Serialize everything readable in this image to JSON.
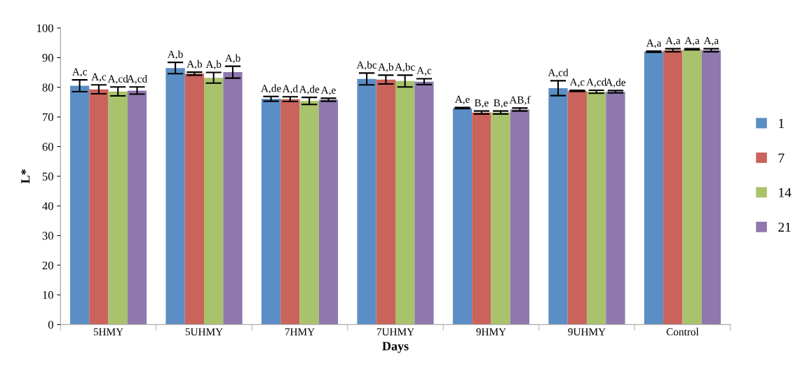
{
  "chart_data": {
    "type": "bar",
    "xlabel": "Days",
    "ylabel": "L*",
    "categories": [
      "5HMY",
      "5UHMY",
      "7HMY",
      "7UHMY",
      "9HMY",
      "9UHMY",
      "Control"
    ],
    "ylim": [
      0,
      100
    ],
    "yticks": [
      0,
      10,
      20,
      30,
      40,
      50,
      60,
      70,
      80,
      90,
      100
    ],
    "grid": false,
    "legend": "right",
    "series": [
      {
        "name": "1",
        "color": "#5b8ec4",
        "values": [
          80.5,
          86.5,
          76.1,
          82.8,
          73.0,
          79.7,
          92.0
        ],
        "errors": [
          2,
          1.9,
          0.8,
          2,
          0.2,
          2.5,
          0.2
        ],
        "value_labels": [
          "A,c",
          "A,b",
          "A,de",
          "A,bc",
          "A,e",
          "A,cd",
          "A,a"
        ]
      },
      {
        "name": "7",
        "color": "#c9635c",
        "values": [
          79.3,
          84.6,
          76.0,
          82.6,
          71.5,
          78.8,
          92.5
        ],
        "errors": [
          1.5,
          0.5,
          0.8,
          1.5,
          0.5,
          0.2,
          0.5
        ],
        "value_labels": [
          "A,c",
          "A,b",
          "A,d",
          "A,b",
          "B,e",
          "A,c",
          "A,a"
        ]
      },
      {
        "name": "14",
        "color": "#a9c26c",
        "values": [
          78.6,
          83.2,
          75.4,
          82.1,
          71.5,
          78.5,
          92.8
        ],
        "errors": [
          1.5,
          1.8,
          1.2,
          2,
          0.5,
          0.5,
          0.2
        ],
        "value_labels": [
          "A,cd",
          "A,b",
          "A,de",
          "A,bc",
          "B,e",
          "A,cd",
          "A,a"
        ]
      },
      {
        "name": "21",
        "color": "#8f78ae",
        "values": [
          78.9,
          85.1,
          75.8,
          81.9,
          72.5,
          78.5,
          92.5
        ],
        "errors": [
          1.2,
          2,
          0.5,
          1,
          0.5,
          0.4,
          0.5
        ],
        "value_labels": [
          "A,cd",
          "A,b",
          "A,e",
          "A,c",
          "AB,f",
          "A,de",
          "A,a"
        ]
      }
    ]
  }
}
